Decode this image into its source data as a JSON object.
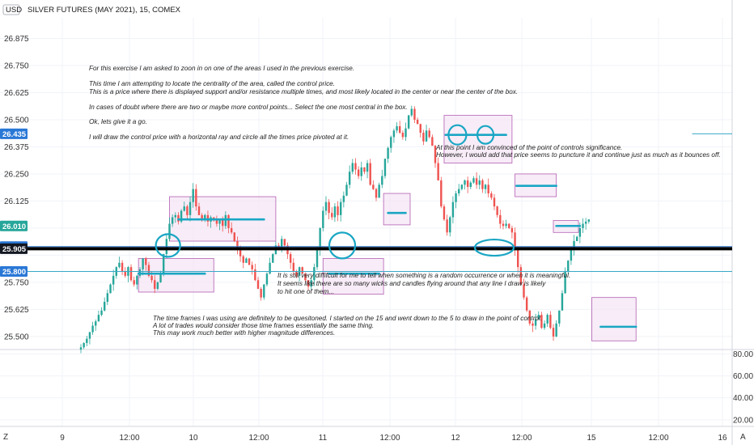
{
  "header": {
    "unit_badge": "USD",
    "symbol_title": "SILVER FUTURES (MAY 2021), 15, COMEX"
  },
  "footer": {
    "left_button": "Z",
    "right_button": "A"
  },
  "chart_data": {
    "type": "candlestick",
    "title": "SILVER FUTURES (MAY 2021), 15, COMEX",
    "ylim": [
      25.44,
      26.97
    ],
    "y_ticks": [
      "26.875",
      "26.750",
      "26.625",
      "26.500",
      "26.375",
      "26.250",
      "26.125",
      "25.750",
      "25.625",
      "25.500"
    ],
    "x_ticks": [
      "9",
      "12:00",
      "10",
      "12:00",
      "11",
      "12:00",
      "12",
      "12:00",
      "15",
      "12:00",
      "16"
    ],
    "oscillator_ticks": [
      "80.00",
      "60.00",
      "40.00",
      "20.00"
    ],
    "oscillator_ylim": [
      14,
      84
    ],
    "price_tags": [
      {
        "value": "26.435",
        "color": "#2a78d6"
      },
      {
        "value": "26.010",
        "color": "#26a69a"
      },
      {
        "value": "25.915",
        "color": "#2a78d6"
      },
      {
        "value": "25.905",
        "color": "#131722"
      },
      {
        "value": "25.800",
        "color": "#2a78d6"
      }
    ],
    "horizontal_rays": [
      {
        "price": 26.435,
        "color": "#3aa8c8",
        "from_x": 20.7
      },
      {
        "price": 25.915,
        "color": "#2a78d6",
        "from_x": 0
      },
      {
        "price": 25.905,
        "color": "#000000",
        "from_x": 0
      },
      {
        "price": 25.8,
        "color": "#3aa8c8",
        "from_x": 0
      }
    ],
    "control_boxes": [
      {
        "x0": 1.95,
        "x1": 4.5,
        "top": 25.86,
        "bottom": 25.705
      },
      {
        "x0": 3.0,
        "x1": 6.6,
        "top": 26.145,
        "bottom": 25.94
      },
      {
        "x0": 8.2,
        "x1": 10.25,
        "top": 25.86,
        "bottom": 25.695
      },
      {
        "x0": 10.25,
        "x1": 11.15,
        "top": 26.16,
        "bottom": 26.015
      },
      {
        "x0": 12.3,
        "x1": 14.6,
        "top": 26.52,
        "bottom": 26.3
      },
      {
        "x0": 14.7,
        "x1": 16.1,
        "top": 26.25,
        "bottom": 26.145
      },
      {
        "x0": 16.0,
        "x1": 16.85,
        "top": 26.035,
        "bottom": 25.98
      },
      {
        "x0": 17.3,
        "x1": 18.8,
        "top": 25.68,
        "bottom": 25.48
      }
    ],
    "levels": [
      {
        "x0": 3.3,
        "x1": 6.2,
        "price": 26.04
      },
      {
        "x0": 1.95,
        "x1": 4.2,
        "price": 25.79
      },
      {
        "x0": 8.4,
        "x1": 10.1,
        "price": 25.79
      },
      {
        "x0": 10.4,
        "x1": 11.0,
        "price": 26.07
      },
      {
        "x0": 12.35,
        "x1": 14.4,
        "price": 26.43
      },
      {
        "x0": 14.75,
        "x1": 16.1,
        "price": 26.195
      },
      {
        "x0": 16.1,
        "x1": 16.9,
        "price": 26.01
      },
      {
        "x0": 17.6,
        "x1": 18.8,
        "price": 25.545
      }
    ],
    "circles": [
      {
        "x": 2.95,
        "price": 25.92,
        "rx": 15,
        "ry": 14
      },
      {
        "x": 8.85,
        "price": 25.92,
        "rx": 16,
        "ry": 16
      },
      {
        "x": 14.0,
        "price": 25.91,
        "rx": 24,
        "ry": 10
      },
      {
        "x": 12.75,
        "price": 26.43,
        "rx": 11,
        "ry": 12
      },
      {
        "x": 13.7,
        "price": 26.43,
        "rx": 10,
        "ry": 11
      }
    ],
    "series": [
      {
        "x": 0,
        "values": [
          25.45,
          25.47,
          25.49,
          25.52,
          25.55,
          25.57,
          25.6,
          25.62,
          25.66,
          25.7,
          25.74,
          25.78,
          25.82,
          25.84,
          25.8,
          25.78,
          25.82,
          25.76,
          25.74,
          25.78,
          25.81,
          25.86,
          25.83,
          25.78,
          25.76,
          25.72,
          25.75,
          25.79,
          25.88,
          25.95,
          26.02,
          26.05,
          26.06,
          26.03,
          26.08,
          26.1,
          26.06,
          26.12,
          26.18,
          26.1,
          26.06,
          26.04,
          26.06,
          26.03,
          26.05,
          26.04,
          26.02,
          26.04,
          26.01,
          26.06,
          26.0,
          25.98,
          25.94,
          25.9,
          25.87,
          25.84,
          25.86,
          25.83,
          25.81,
          25.76,
          25.72,
          25.68,
          25.74,
          25.79,
          25.84,
          25.88,
          25.92,
          25.9,
          25.95,
          25.92,
          25.88,
          25.84,
          25.8,
          25.78,
          25.82,
          25.79,
          25.76,
          25.73,
          25.76,
          25.82,
          25.9,
          26.0,
          26.08,
          26.12,
          26.07,
          26.05,
          26.1,
          26.06,
          26.12,
          26.15,
          26.2,
          26.26,
          26.3,
          26.27,
          26.24,
          26.28,
          26.26,
          26.3,
          26.2,
          26.18,
          26.14,
          26.2,
          26.24,
          26.32,
          26.37,
          26.42,
          26.45,
          26.47,
          26.44,
          26.42,
          26.46,
          26.52,
          26.55,
          26.5,
          26.48,
          26.44,
          26.4,
          26.45,
          26.42,
          26.38,
          26.3,
          26.22,
          26.1,
          26.04,
          25.98,
          26.05,
          26.12,
          26.16,
          26.18,
          26.2,
          26.22,
          26.19,
          26.21,
          26.23,
          26.2,
          26.22,
          26.18,
          26.2,
          26.16,
          26.14,
          26.1,
          26.06,
          26.02,
          26.01,
          26.02,
          26.0,
          25.98,
          25.9,
          25.82,
          25.74,
          25.68,
          25.62,
          25.56,
          25.55,
          25.58,
          25.6,
          25.54,
          25.56,
          25.6,
          25.54,
          25.5,
          25.56,
          25.62,
          25.7,
          25.8,
          25.85,
          25.9,
          25.94,
          25.96,
          26.0,
          26.02,
          26.03,
          26.04
        ]
      }
    ]
  },
  "annotations": [
    "For this exercise I am asked to zoon in on one of the areas I used in the previous exercise.",
    "This time I am attempting to locate the centrality of the area, called the control price.",
    "This is a price where there is displayed support and/or resistance multiple times, and most likely located in the center or near the center of the box.",
    "In cases of doubt where there are two or maybe more control points... Select the one most central in the box.",
    "Ok, lets give it a go.",
    "I will draw the control price with a horizontal ray and circle all the times price pivoted at it.",
    "At this point I am convinced of the point of controls significance.",
    "However, I would add that price seems to puncture it and continue just as much as it bounces off.",
    "It is still very diffifcult for me to tell when something is a random occurrence or when it is meaningful.",
    "It seems like there are so many wicks and candles flying around that any line I draw is likely",
    "to hit one of them...",
    "The time frames I was using are definitely to be quesitoned. I started on the 15 and went down to the 5 to draw in the point of control.",
    "A lot of trades would consider those time frames essentially the same thing.",
    "This may work much better with higher magnitude differences."
  ],
  "colors": {
    "up": "#26a69a",
    "down": "#ef5350",
    "box_fill": "#f3e4f3",
    "box_stroke": "#b35fb3",
    "marker": "#19a6c4",
    "grid": "#f0f3f8"
  }
}
